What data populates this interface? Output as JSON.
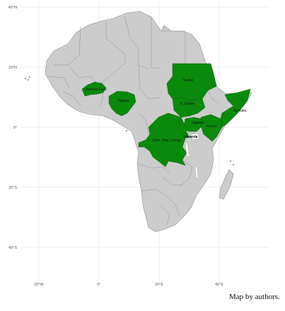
{
  "map": {
    "axes": {
      "longitude_labels": [
        "20°W",
        "0°",
        "20°E",
        "40°E"
      ],
      "latitude_labels": [
        "40°N",
        "20°N",
        "0°",
        "20°S",
        "40°S"
      ]
    },
    "highlight_color": "#0a8a0a",
    "land_color": "#cccccc",
    "highlighted_countries": [
      "Burkina Faso",
      "Nigeria",
      "Sudan",
      "S. Sudan",
      "Somalia",
      "Uganda",
      "Kenya",
      "Dem. Rep. Congo",
      "Rwanda"
    ]
  },
  "caption": "Map by authors."
}
